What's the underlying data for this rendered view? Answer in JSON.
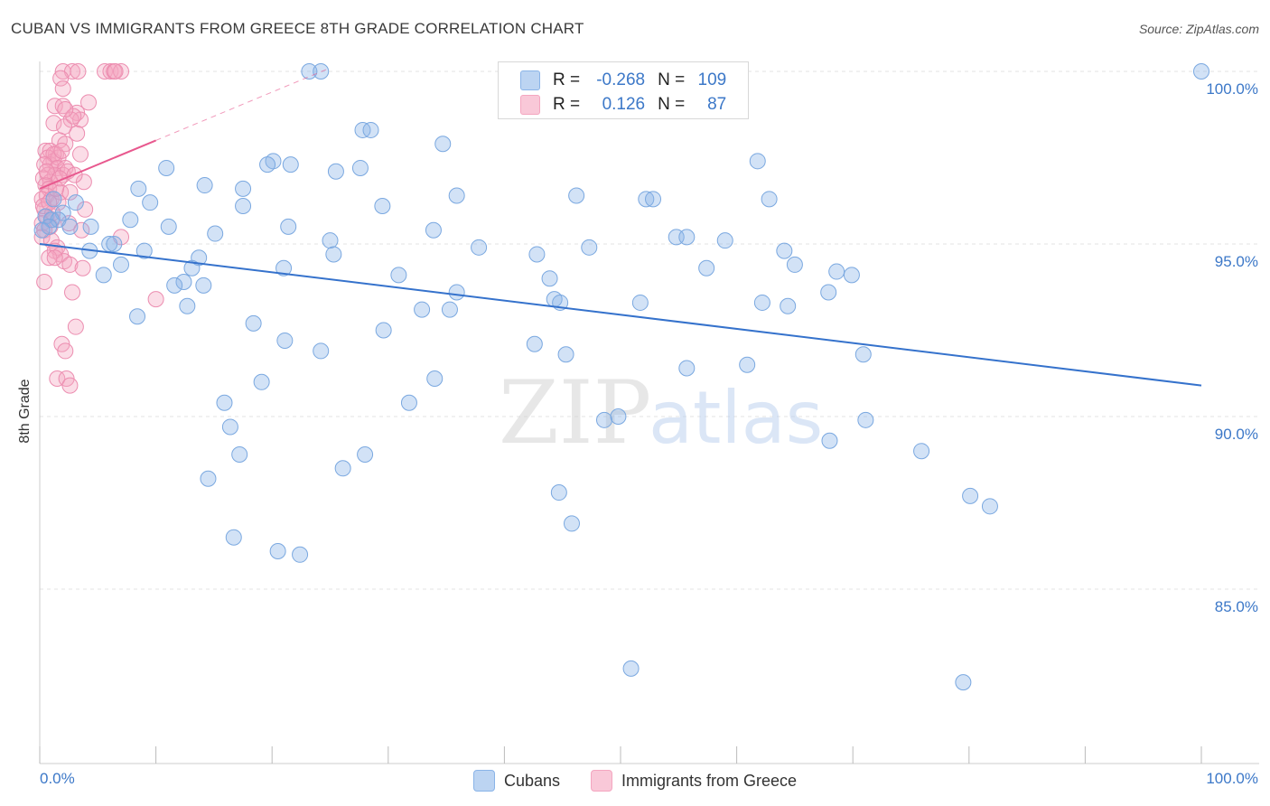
{
  "chart_data": {
    "type": "scatter",
    "title": "CUBAN VS IMMIGRANTS FROM GREECE 8TH GRADE CORRELATION CHART",
    "source": "Source: ZipAtlas.com",
    "ylabel": "8th Grade",
    "xlabel": "",
    "xlim": [
      0,
      100
    ],
    "ylim": [
      80.5,
      100.8
    ],
    "x_tick_labels": [
      "0.0%",
      "100.0%"
    ],
    "y_ticks": [
      {
        "value": 85,
        "label": "85.0%"
      },
      {
        "value": 90,
        "label": "90.0%"
      },
      {
        "value": 95,
        "label": "95.0%"
      },
      {
        "value": 100,
        "label": "100.0%"
      }
    ],
    "grid": true,
    "watermark": {
      "zip": "ZIP",
      "atlas": "atlas"
    },
    "legend_stats": [
      {
        "r_label": "R =",
        "r_value": "-0.268",
        "n_label": "N =",
        "n_value": "109"
      },
      {
        "r_label": "R =",
        "r_value": "0.126",
        "n_label": "N =",
        "n_value": "87"
      }
    ],
    "series": [
      {
        "name": "Cubans",
        "color": "#8ab4e8",
        "line_color": "#3572cc",
        "trend": {
          "x": [
            0,
            100
          ],
          "y": [
            95.0,
            90.9
          ]
        },
        "points": [
          [
            23.2,
            100
          ],
          [
            24.2,
            100
          ],
          [
            100,
            100
          ],
          [
            27.8,
            98.3
          ],
          [
            28.5,
            98.3
          ],
          [
            34.7,
            97.9
          ],
          [
            20.1,
            97.4
          ],
          [
            19.6,
            97.3
          ],
          [
            21.6,
            97.3
          ],
          [
            61.8,
            97.4
          ],
          [
            10.9,
            97.2
          ],
          [
            25.5,
            97.1
          ],
          [
            27.6,
            97.2
          ],
          [
            14.2,
            96.7
          ],
          [
            8.5,
            96.6
          ],
          [
            17.5,
            96.6
          ],
          [
            35.9,
            96.4
          ],
          [
            46.2,
            96.4
          ],
          [
            52.2,
            96.3
          ],
          [
            52.8,
            96.3
          ],
          [
            62.8,
            96.3
          ],
          [
            9.5,
            96.2
          ],
          [
            1.2,
            96.3
          ],
          [
            3.1,
            96.2
          ],
          [
            17.5,
            96.1
          ],
          [
            29.5,
            96.1
          ],
          [
            2.0,
            95.9
          ],
          [
            0.5,
            95.8
          ],
          [
            1.0,
            95.7
          ],
          [
            7.8,
            95.7
          ],
          [
            1.6,
            95.7
          ],
          [
            0.8,
            95.5
          ],
          [
            4.4,
            95.5
          ],
          [
            11.1,
            95.5
          ],
          [
            21.4,
            95.5
          ],
          [
            33.9,
            95.4
          ],
          [
            15.1,
            95.3
          ],
          [
            54.8,
            95.2
          ],
          [
            55.7,
            95.2
          ],
          [
            59.0,
            95.1
          ],
          [
            25.0,
            95.1
          ],
          [
            6.0,
            95.0
          ],
          [
            6.4,
            95.0
          ],
          [
            37.8,
            94.9
          ],
          [
            47.3,
            94.9
          ],
          [
            64.1,
            94.8
          ],
          [
            4.3,
            94.8
          ],
          [
            9.0,
            94.8
          ],
          [
            25.3,
            94.7
          ],
          [
            42.8,
            94.7
          ],
          [
            13.7,
            94.6
          ],
          [
            65.0,
            94.4
          ],
          [
            7.0,
            94.4
          ],
          [
            21.0,
            94.3
          ],
          [
            13.1,
            94.3
          ],
          [
            57.4,
            94.3
          ],
          [
            30.9,
            94.1
          ],
          [
            68.6,
            94.2
          ],
          [
            69.9,
            94.1
          ],
          [
            5.5,
            94.1
          ],
          [
            12.4,
            93.9
          ],
          [
            43.9,
            94.0
          ],
          [
            11.6,
            93.8
          ],
          [
            14.1,
            93.8
          ],
          [
            35.9,
            93.6
          ],
          [
            44.3,
            93.4
          ],
          [
            67.9,
            93.6
          ],
          [
            44.8,
            93.3
          ],
          [
            32.9,
            93.1
          ],
          [
            12.7,
            93.2
          ],
          [
            62.2,
            93.3
          ],
          [
            64.4,
            93.2
          ],
          [
            35.3,
            93.1
          ],
          [
            51.7,
            93.3
          ],
          [
            8.4,
            92.9
          ],
          [
            18.4,
            92.7
          ],
          [
            29.6,
            92.5
          ],
          [
            21.1,
            92.2
          ],
          [
            42.6,
            92.1
          ],
          [
            24.2,
            91.9
          ],
          [
            45.3,
            91.8
          ],
          [
            70.9,
            91.8
          ],
          [
            60.9,
            91.5
          ],
          [
            55.7,
            91.4
          ],
          [
            19.1,
            91.0
          ],
          [
            34.0,
            91.1
          ],
          [
            15.9,
            90.4
          ],
          [
            31.8,
            90.4
          ],
          [
            49.8,
            90.0
          ],
          [
            48.6,
            89.9
          ],
          [
            71.1,
            89.9
          ],
          [
            16.4,
            89.7
          ],
          [
            68.0,
            89.3
          ],
          [
            75.9,
            89.0
          ],
          [
            17.2,
            88.9
          ],
          [
            28.0,
            88.9
          ],
          [
            26.1,
            88.5
          ],
          [
            14.5,
            88.2
          ],
          [
            44.7,
            87.8
          ],
          [
            80.1,
            87.7
          ],
          [
            81.8,
            87.4
          ],
          [
            45.8,
            86.9
          ],
          [
            16.7,
            86.5
          ],
          [
            20.5,
            86.1
          ],
          [
            22.4,
            86.0
          ],
          [
            50.9,
            82.7
          ],
          [
            79.5,
            82.3
          ],
          [
            0.2,
            95.4
          ],
          [
            2.6,
            95.5
          ]
        ]
      },
      {
        "name": "Immigrants from Greece",
        "color": "#f4a6c0",
        "line_color": "#e8588e",
        "trend": {
          "x": [
            0,
            10
          ],
          "y": [
            96.6,
            98.0
          ]
        },
        "trend_dashed": {
          "x": [
            10,
            25
          ],
          "y": [
            98.0,
            100.1
          ]
        },
        "points": [
          [
            2.0,
            100
          ],
          [
            2.8,
            100
          ],
          [
            3.3,
            100
          ],
          [
            5.6,
            100
          ],
          [
            6.1,
            100
          ],
          [
            6.4,
            100
          ],
          [
            7.0,
            100
          ],
          [
            6.5,
            100
          ],
          [
            1.8,
            99.8
          ],
          [
            2.0,
            99.5
          ],
          [
            4.2,
            99.1
          ],
          [
            1.3,
            99.0
          ],
          [
            2.0,
            99.0
          ],
          [
            3.2,
            98.8
          ],
          [
            3.5,
            98.6
          ],
          [
            2.7,
            98.6
          ],
          [
            1.2,
            98.5
          ],
          [
            2.1,
            98.4
          ],
          [
            3.2,
            98.2
          ],
          [
            1.7,
            98.0
          ],
          [
            2.2,
            97.9
          ],
          [
            0.5,
            97.7
          ],
          [
            0.9,
            97.7
          ],
          [
            1.4,
            97.6
          ],
          [
            3.5,
            97.6
          ],
          [
            0.7,
            97.5
          ],
          [
            1.2,
            97.4
          ],
          [
            0.9,
            97.3
          ],
          [
            1.6,
            97.5
          ],
          [
            1.2,
            97.6
          ],
          [
            0.4,
            97.3
          ],
          [
            1.5,
            97.2
          ],
          [
            2.2,
            97.2
          ],
          [
            0.7,
            97.0
          ],
          [
            1.3,
            97.0
          ],
          [
            2.0,
            97.0
          ],
          [
            0.3,
            96.9
          ],
          [
            0.9,
            96.8
          ],
          [
            3.8,
            96.8
          ],
          [
            0.5,
            96.7
          ],
          [
            0.8,
            96.6
          ],
          [
            1.8,
            96.5
          ],
          [
            2.6,
            96.5
          ],
          [
            0.6,
            96.4
          ],
          [
            0.2,
            96.3
          ],
          [
            1.0,
            96.3
          ],
          [
            1.6,
            96.2
          ],
          [
            0.4,
            96.0
          ],
          [
            0.6,
            95.8
          ],
          [
            1.1,
            95.7
          ],
          [
            0.2,
            95.6
          ],
          [
            0.9,
            95.5
          ],
          [
            0.4,
            95.4
          ],
          [
            3.6,
            95.4
          ],
          [
            0.2,
            95.2
          ],
          [
            1.0,
            95.1
          ],
          [
            7.0,
            95.2
          ],
          [
            1.5,
            94.9
          ],
          [
            1.3,
            94.8
          ],
          [
            1.8,
            94.7
          ],
          [
            0.8,
            94.6
          ],
          [
            2.1,
            94.5
          ],
          [
            2.6,
            94.4
          ],
          [
            3.7,
            94.3
          ],
          [
            0.4,
            93.9
          ],
          [
            2.8,
            93.6
          ],
          [
            10.0,
            93.4
          ],
          [
            3.1,
            92.6
          ],
          [
            1.9,
            92.1
          ],
          [
            2.2,
            91.9
          ],
          [
            1.5,
            91.1
          ],
          [
            2.3,
            91.1
          ],
          [
            2.6,
            90.9
          ],
          [
            0.3,
            96.1
          ],
          [
            1.4,
            96.6
          ],
          [
            2.4,
            97.1
          ],
          [
            3.0,
            97.0
          ],
          [
            0.6,
            97.1
          ],
          [
            1.9,
            97.7
          ],
          [
            2.9,
            98.7
          ],
          [
            1.1,
            95.9
          ],
          [
            1.7,
            96.9
          ],
          [
            2.5,
            95.6
          ],
          [
            0.8,
            96.2
          ],
          [
            1.3,
            94.6
          ],
          [
            3.9,
            96.0
          ],
          [
            2.2,
            98.9
          ]
        ]
      }
    ]
  }
}
